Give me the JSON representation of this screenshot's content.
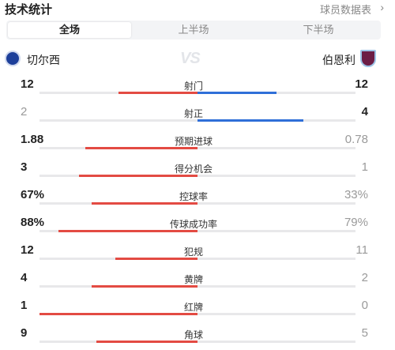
{
  "header": {
    "title": "技术统计",
    "player_link": "球员数据表",
    "arrow": "›"
  },
  "tabs": [
    {
      "label": "全场",
      "active": true
    },
    {
      "label": "上半场",
      "active": false
    },
    {
      "label": "下半场",
      "active": false
    }
  ],
  "teams": {
    "home": "切尔西",
    "away": "伯恩利",
    "vs": "VS"
  },
  "colors": {
    "winner": "#e34b43",
    "shots_blue": "#2f6fd8",
    "track": "#e8e8ea"
  },
  "stats": [
    {
      "label": "射门",
      "home": "12",
      "away": "12",
      "home_pct": 0.5,
      "away_pct": 0.5,
      "home_color": "#e34b43",
      "away_color": "#2f6fd8",
      "home_lose": false,
      "away_lose": false
    },
    {
      "label": "射正",
      "home": "2",
      "away": "4",
      "home_pct": 0.33,
      "away_pct": 0.67,
      "home_color": "#e8e8ea",
      "away_color": "#2f6fd8",
      "home_lose": true,
      "away_lose": false
    },
    {
      "label": "预期进球",
      "home": "1.88",
      "away": "0.78",
      "home_pct": 0.71,
      "away_pct": 0.29,
      "home_color": "#e34b43",
      "away_color": "#e8e8ea",
      "home_lose": false,
      "away_lose": true
    },
    {
      "label": "得分机会",
      "home": "3",
      "away": "1",
      "home_pct": 0.75,
      "away_pct": 0.25,
      "home_color": "#e34b43",
      "away_color": "#e8e8ea",
      "home_lose": false,
      "away_lose": true
    },
    {
      "label": "控球率",
      "home": "67%",
      "away": "33%",
      "home_pct": 0.67,
      "away_pct": 0.33,
      "home_color": "#e34b43",
      "away_color": "#e8e8ea",
      "home_lose": false,
      "away_lose": true
    },
    {
      "label": "传球成功率",
      "home": "88%",
      "away": "79%",
      "home_pct": 0.88,
      "away_pct": 0.79,
      "home_color": "#e34b43",
      "away_color": "#e8e8ea",
      "home_lose": false,
      "away_lose": true
    },
    {
      "label": "犯规",
      "home": "12",
      "away": "11",
      "home_pct": 0.52,
      "away_pct": 0.48,
      "home_color": "#e34b43",
      "away_color": "#e8e8ea",
      "home_lose": false,
      "away_lose": true
    },
    {
      "label": "黄牌",
      "home": "4",
      "away": "2",
      "home_pct": 0.67,
      "away_pct": 0.33,
      "home_color": "#e34b43",
      "away_color": "#e8e8ea",
      "home_lose": false,
      "away_lose": true
    },
    {
      "label": "红牌",
      "home": "1",
      "away": "0",
      "home_pct": 1.0,
      "away_pct": 0.0,
      "home_color": "#e34b43",
      "away_color": "#e8e8ea",
      "home_lose": false,
      "away_lose": true
    },
    {
      "label": "角球",
      "home": "9",
      "away": "5",
      "home_pct": 0.64,
      "away_pct": 0.36,
      "home_color": "#e34b43",
      "away_color": "#e8e8ea",
      "home_lose": false,
      "away_lose": true
    }
  ]
}
